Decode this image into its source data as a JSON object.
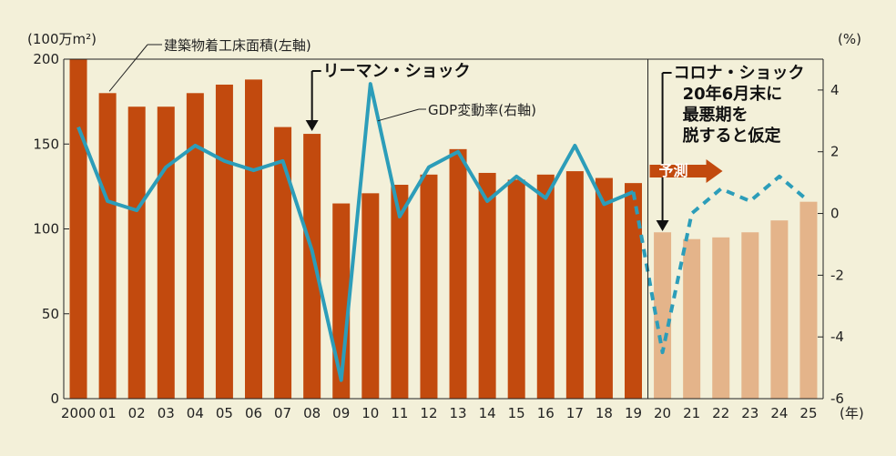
{
  "chart_data": {
    "type": "bar",
    "categories": [
      "2000",
      "01",
      "02",
      "03",
      "04",
      "05",
      "06",
      "07",
      "08",
      "09",
      "10",
      "11",
      "12",
      "13",
      "14",
      "15",
      "16",
      "17",
      "18",
      "19",
      "20",
      "21",
      "22",
      "23",
      "24",
      "25"
    ],
    "x_unit": "(年)",
    "left_axis": {
      "unit": "(100万m²)",
      "ylim": [
        0,
        200
      ],
      "ticks": [
        0,
        50,
        100,
        150,
        200
      ]
    },
    "right_axis": {
      "unit": "(%)",
      "ylim": [
        -6,
        5
      ],
      "ticks": [
        -6,
        -4,
        -2,
        0,
        2,
        4
      ]
    },
    "series": [
      {
        "name": "建築物着工床面積(左軸)",
        "axis": "left",
        "kind": "bar",
        "values": [
          200,
          180,
          172,
          172,
          180,
          185,
          188,
          160,
          156,
          115,
          121,
          126,
          132,
          147,
          133,
          129,
          132,
          134,
          130,
          127,
          98,
          94,
          95,
          98,
          105,
          116
        ],
        "color_actual": "#c24a0e",
        "color_forecast": "#e4b48a"
      },
      {
        "name": "GDP変動率(右軸)",
        "axis": "right",
        "kind": "line",
        "values": [
          2.8,
          0.4,
          0.1,
          1.5,
          2.2,
          1.7,
          1.4,
          1.7,
          -1.2,
          -5.4,
          4.2,
          -0.1,
          1.5,
          2.0,
          0.4,
          1.2,
          0.5,
          2.2,
          0.3,
          0.7,
          -4.5,
          0.0,
          0.8,
          0.4,
          1.2,
          0.4
        ],
        "color": "#2c9db9"
      }
    ],
    "forecast_start_index": 20,
    "forecast_label": "予測",
    "annotations": {
      "lehman": "リーマン・ショック",
      "corona": [
        "コロナ・ショック",
        "20年6月末に",
        "最悪期を",
        "脱すると仮定"
      ]
    },
    "grid": false
  }
}
